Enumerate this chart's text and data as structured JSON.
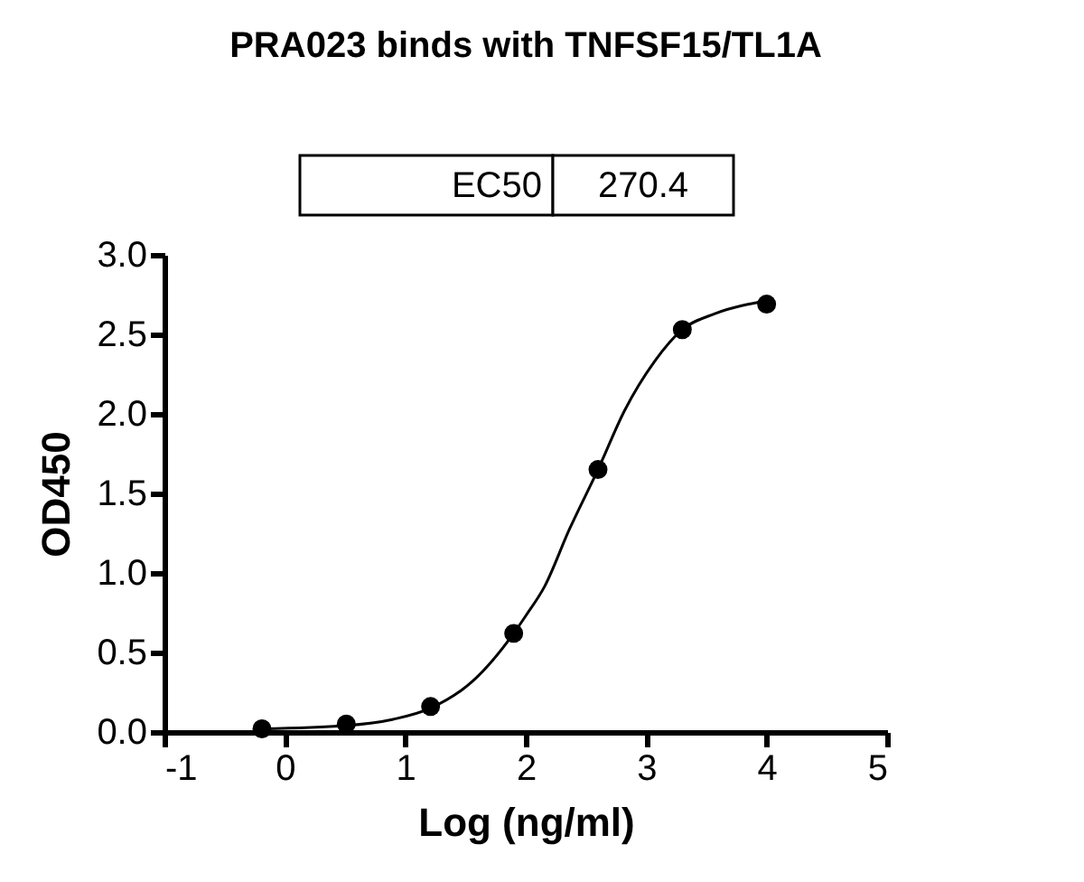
{
  "chart_data": {
    "type": "scatter",
    "title": "PRA023 binds with TNFSF15/TL1A",
    "xlabel": "Log (ng/ml)",
    "ylabel": "OD450",
    "annotations": [
      "EC50",
      "270.4"
    ],
    "series": [
      {
        "color": "#000000",
        "marker": "circle",
        "x": [
          -0.19,
          0.51,
          1.21,
          1.9,
          2.6,
          3.3,
          4.0
        ],
        "values": [
          0.02,
          0.05,
          0.16,
          0.62,
          1.65,
          2.53,
          2.69
        ]
      },
      {
        "type": "line",
        "color": "#000000",
        "marker": "none",
        "line_style": "solid",
        "x": [
          -0.19,
          0.5,
          0.9,
          1.21,
          1.56,
          1.9,
          2.0,
          2.16,
          2.36,
          2.6,
          2.82,
          3.07,
          3.3,
          3.57,
          4.0
        ],
        "values": [
          0.02,
          0.04,
          0.08,
          0.15,
          0.32,
          0.62,
          0.73,
          0.92,
          1.27,
          1.65,
          2.02,
          2.33,
          2.53,
          2.63,
          2.71
        ]
      }
    ],
    "xlim": [
      -1,
      5
    ],
    "xticks": [
      -1,
      0,
      1,
      2,
      3,
      4,
      5
    ],
    "ylim": [
      0,
      3
    ],
    "yticks": [
      {
        "value": 0,
        "label": "0.0"
      },
      {
        "value": 0.5,
        "label": "0.5"
      },
      {
        "value": 1,
        "label": "1.0"
      },
      {
        "value": 1.5,
        "label": "1.5"
      },
      {
        "value": 2,
        "label": "2.0"
      },
      {
        "value": 2.5,
        "label": "2.5"
      },
      {
        "value": 3,
        "label": "3.0"
      }
    ],
    "grid": false,
    "legend": false
  }
}
